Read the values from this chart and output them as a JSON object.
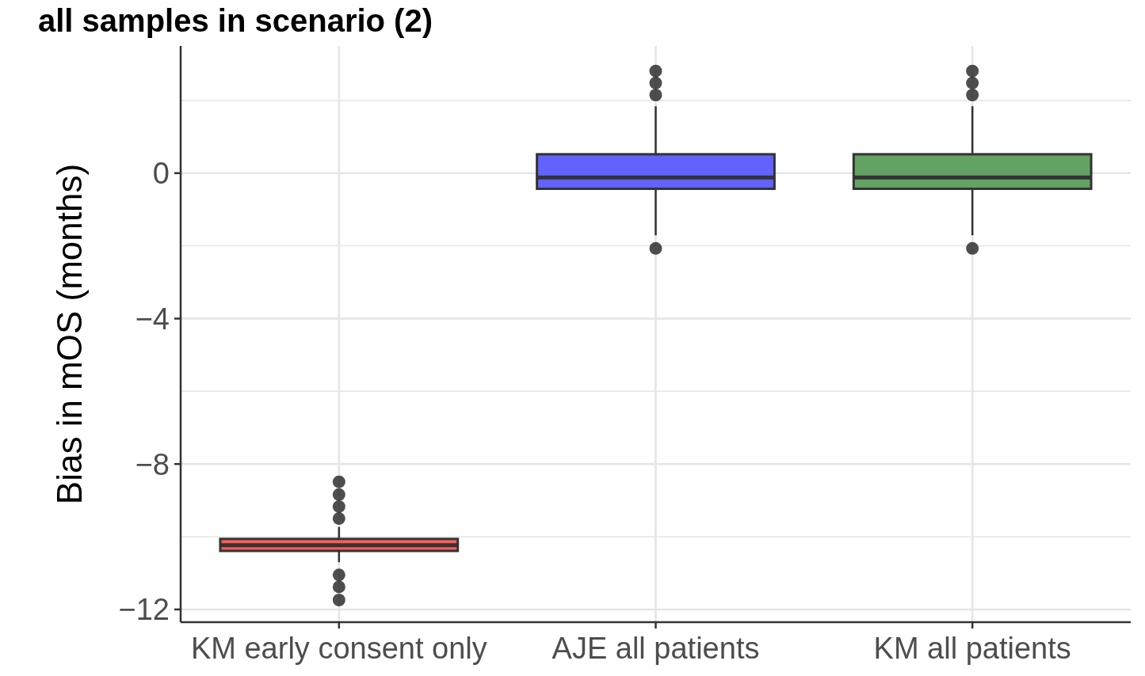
{
  "chart_data": {
    "type": "box",
    "title": "all samples in scenario (2)",
    "ylabel": "Bias in mOS (months)",
    "categories": [
      "KM early consent only",
      "AJE all patients",
      "KM all patients"
    ],
    "colors": [
      "#ff5a5a",
      "#6262ff",
      "#64a264"
    ],
    "boxes": [
      {
        "low": -10.7,
        "q1": -10.39,
        "median": -10.23,
        "q3": -10.06,
        "high": -9.73,
        "outliers": [
          -8.49,
          -8.84,
          -9.17,
          -9.5,
          -11.05,
          -11.38,
          -11.74
        ]
      },
      {
        "low": -1.71,
        "q1": -0.43,
        "median": -0.12,
        "q3": 0.52,
        "high": 1.84,
        "outliers": [
          2.81,
          2.48,
          2.15,
          -2.07
        ]
      },
      {
        "low": -1.71,
        "q1": -0.43,
        "median": -0.12,
        "q3": 0.52,
        "high": 1.84,
        "outliers": [
          2.81,
          2.48,
          2.15,
          -2.07
        ]
      }
    ],
    "ylim": [
      -12.35,
      3.5
    ],
    "yticks": [
      {
        "value": 2,
        "label": null
      },
      0,
      {
        "value": -2,
        "label": null
      },
      -4,
      {
        "value": -6,
        "label": null
      },
      -8,
      {
        "value": -10,
        "label": null
      },
      -12
    ],
    "grid": true
  }
}
